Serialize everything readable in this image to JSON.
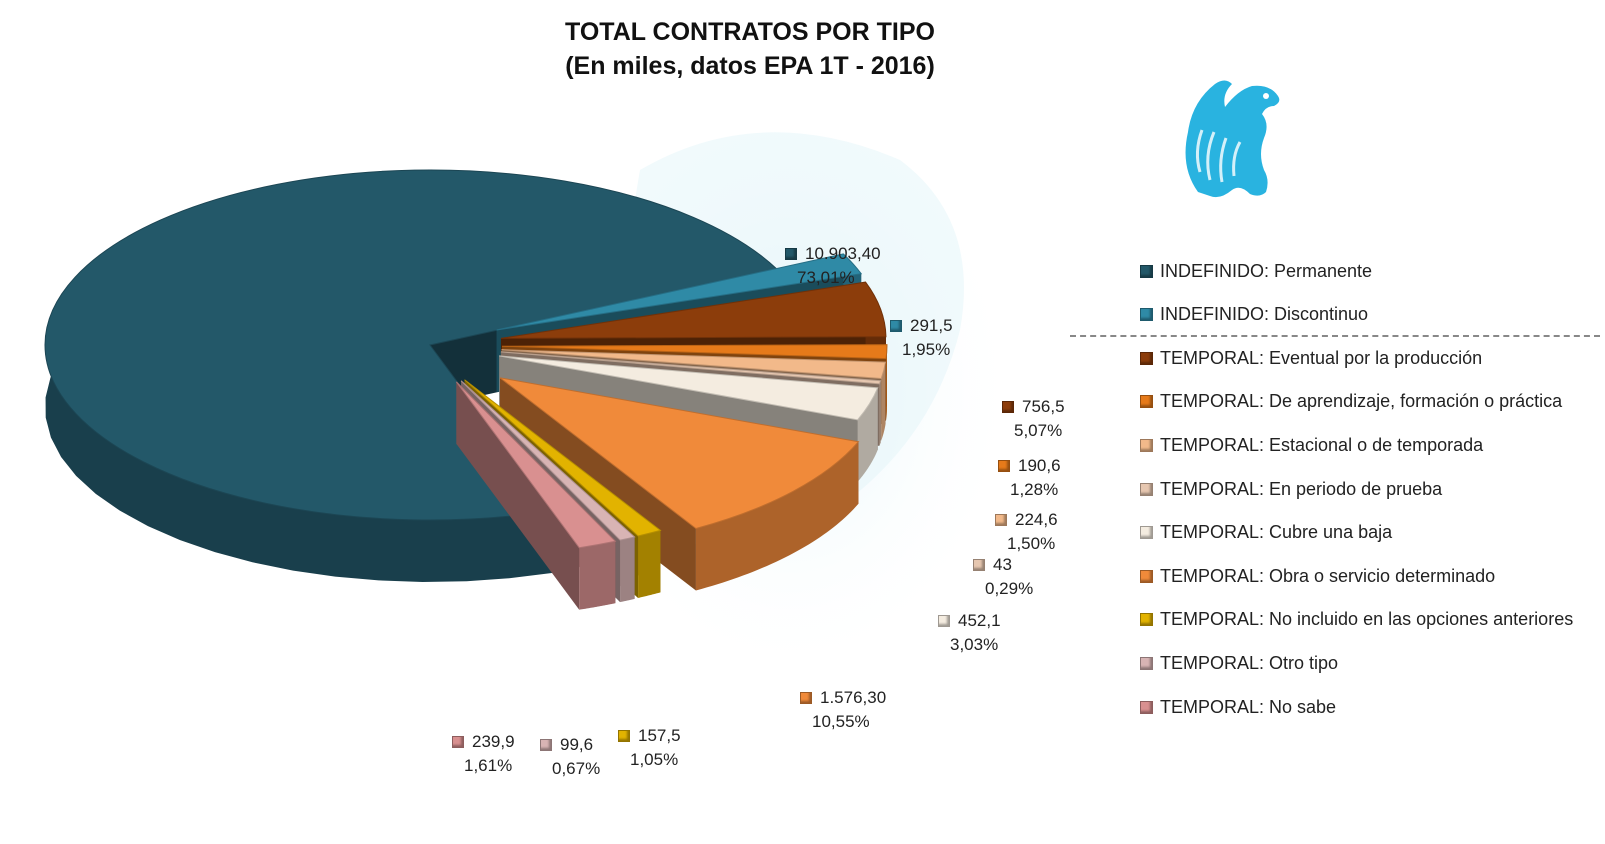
{
  "title": "TOTAL CONTRATOS POR TIPO",
  "subtitle": "(En miles, datos EPA 1T - 2016)",
  "chart_data": {
    "type": "pie",
    "title": "TOTAL CONTRATOS POR TIPO",
    "subtitle": "(En miles, datos EPA 1T - 2016)",
    "legend_position": "right",
    "exploded": true,
    "categories": [
      "INDEFINIDO: Permanente",
      "INDEFINIDO: Discontinuo",
      "TEMPORAL: Eventual por la producción",
      "TEMPORAL: De aprendizaje, formación o práctica",
      "TEMPORAL: Estacional o de temporada",
      "TEMPORAL: En periodo de prueba",
      "TEMPORAL: Cubre una baja",
      "TEMPORAL: Obra o servicio determinado",
      "TEMPORAL: No incluido en las opciones anteriores",
      "TEMPORAL: Otro tipo",
      "TEMPORAL: No sabe"
    ],
    "values": [
      10903.4,
      291.5,
      756.5,
      190.6,
      224.6,
      43,
      452.1,
      1576.3,
      157.5,
      99.6,
      239.9
    ],
    "value_labels": [
      "10.903,40",
      "291,5",
      "756,5",
      "190,6",
      "224,6",
      "43",
      "452,1",
      "1.576,30",
      "157,5",
      "99,6",
      "239,9"
    ],
    "percent_labels": [
      "73,01%",
      "1,95%",
      "5,07%",
      "1,28%",
      "1,50%",
      "0,29%",
      "3,03%",
      "10,55%",
      "1,05%",
      "0,67%",
      "1,61%"
    ],
    "colors": [
      "#235869",
      "#2f8aa6",
      "#8c3d0b",
      "#e67a1a",
      "#f2b98a",
      "#e6c7b0",
      "#f4ece0",
      "#f08a3a",
      "#e2b300",
      "#d8b4b4",
      "#d99090"
    ]
  },
  "legend_items": [
    "INDEFINIDO: Permanente",
    "INDEFINIDO: Discontinuo",
    "TEMPORAL: Eventual por la producción",
    "TEMPORAL: De aprendizaje, formación o práctica",
    "TEMPORAL: Estacional o de temporada",
    "TEMPORAL: En periodo de prueba",
    "TEMPORAL: Cubre una baja",
    "TEMPORAL: Obra o servicio determinado",
    "TEMPORAL: No incluido en las opciones anteriores",
    "TEMPORAL: Otro tipo",
    "TEMPORAL: No sabe"
  ],
  "icons": {
    "logo": "griffin-logo-icon",
    "watermark": "griffin-watermark-icon"
  }
}
